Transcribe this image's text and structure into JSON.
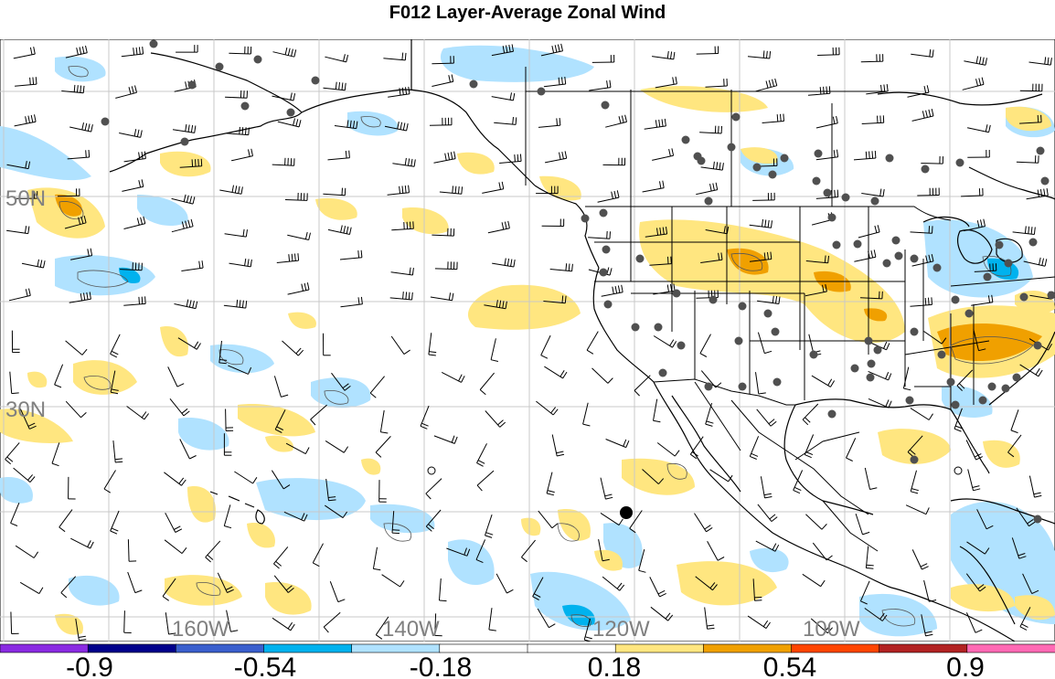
{
  "title": "F012 Layer-Average Zonal Wind",
  "lat_labels": [
    "50N",
    "30N"
  ],
  "lon_labels": [
    "160W",
    "140W",
    "120W",
    "100W"
  ],
  "colorbar": {
    "colors": [
      "#8a2be2",
      "#00008b",
      "#3a5fcd",
      "#00b2ee",
      "#b0e2ff",
      "#ffffff",
      "#ffffff",
      "#ffe680",
      "#f0a000",
      "#ff4500",
      "#b22222",
      "#ff69b4"
    ],
    "labels": [
      "-0.9",
      "-0.54",
      "-0.18",
      "0.18",
      "0.54",
      "0.9"
    ]
  },
  "colors": {
    "land_line": "#000000",
    "grid": "#c8c8c8",
    "station": "#505050",
    "pos_light": "#ffe680",
    "pos_mid": "#f0a000",
    "pos_strong": "#ff4500",
    "neg_light": "#b0e2ff",
    "neg_mid": "#00b2ee"
  }
}
